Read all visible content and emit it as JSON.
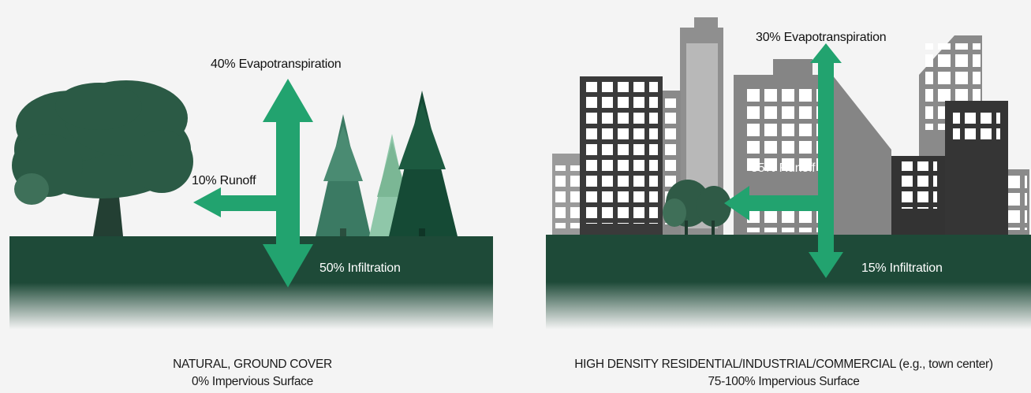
{
  "colors": {
    "ground": "#1e4a38",
    "arrow": "#22a36f",
    "background": "#f4f4f4",
    "building_dark": "#3a3a3a",
    "building_grey": "#8a8a8a"
  },
  "natural": {
    "evapotranspiration": "40% Evapotranspiration",
    "runoff": "10% Runoff",
    "infiltration": "50% Infiltration",
    "caption_line1": "NATURAL, GROUND COVER",
    "caption_line2": "0% Impervious Surface"
  },
  "urban": {
    "evapotranspiration": "30% Evapotranspiration",
    "runoff": "55% Runoff",
    "infiltration": "15% Infiltration",
    "caption_line1": "HIGH DENSITY RESIDENTIAL/INDUSTRIAL/COMMERCIAL (e.g., town center)",
    "caption_line2": "75-100% Impervious Surface"
  }
}
